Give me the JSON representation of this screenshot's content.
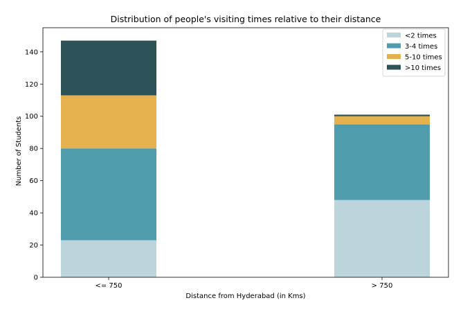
{
  "chart_data": {
    "type": "bar",
    "stacked": true,
    "title": "Distribution of people's visiting times relative to their distance",
    "xlabel": "Distance from Hyderabad (in Kms)",
    "ylabel": "Number of Students",
    "categories": [
      "<= 750",
      "> 750"
    ],
    "series": [
      {
        "name": "<2 times",
        "values": [
          23,
          48
        ],
        "color": "#bcd4dc"
      },
      {
        "name": "3-4 times",
        "values": [
          57,
          47
        ],
        "color": "#4f9cac"
      },
      {
        "name": "5-10 times",
        "values": [
          33,
          5
        ],
        "color": "#e6b24f"
      },
      {
        "name": ">10 times",
        "values": [
          34,
          1
        ],
        "color": "#2d5358"
      }
    ],
    "ylim": [
      0,
      155
    ],
    "yticks": [
      0,
      20,
      40,
      60,
      80,
      100,
      120,
      140
    ],
    "grid": false,
    "legend_position": "top-right"
  }
}
